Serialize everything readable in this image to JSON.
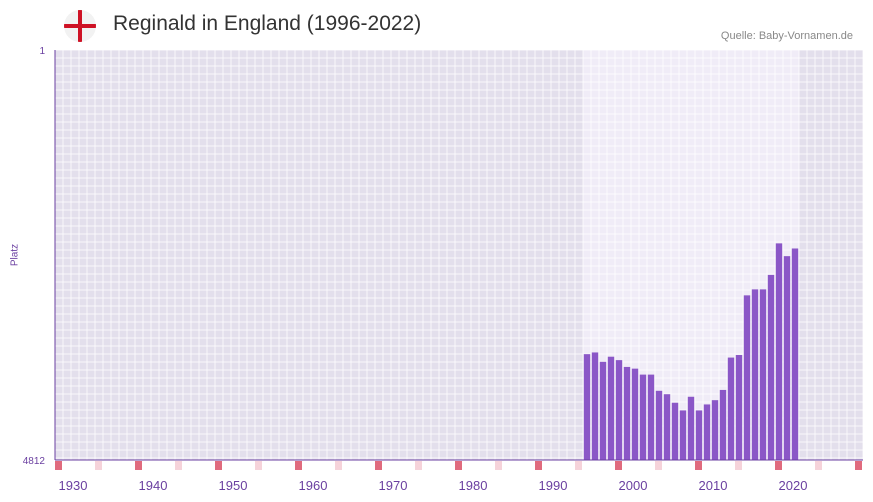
{
  "header": {
    "title": "Reginald in England (1996-2022)",
    "source": "Quelle: Baby-Vornamen.de",
    "flag_icon": "england-flag-icon"
  },
  "colors": {
    "bar": "#8b57c7",
    "plot_bg": "#e3dfec",
    "highlight_bg": "#f0ecf7",
    "grid": "#ffffff",
    "axis": "#6a3fa0",
    "marker_strong": "#e06b7e",
    "marker_light": "#f6d3da"
  },
  "chart_data": {
    "type": "bar",
    "title": "Reginald in England (1996-2022)",
    "ylabel": "Platz",
    "xlabel": "",
    "y_axis_inverted": true,
    "ylim": [
      1,
      4812
    ],
    "ytick_labels": [
      "1",
      "4812"
    ],
    "xlim": [
      1928,
      2029
    ],
    "xtick_labels": [
      "1930",
      "1940",
      "1950",
      "1960",
      "1970",
      "1980",
      "1990",
      "2000",
      "2010",
      "2020"
    ],
    "highlight_range": [
      1996,
      2022
    ],
    "categories": [
      1994,
      1995,
      1996,
      1997,
      1998,
      1999,
      2000,
      2001,
      2002,
      2003,
      2004,
      2005,
      2006,
      2007,
      2008,
      2009,
      2010,
      2011,
      2012,
      2013,
      2014,
      2015,
      2016,
      2017,
      2018,
      2019,
      2020
    ],
    "values": [
      3570,
      3550,
      3660,
      3600,
      3640,
      3720,
      3740,
      3810,
      3810,
      4000,
      4040,
      4140,
      4230,
      4070,
      4230,
      4160,
      4110,
      3990,
      3610,
      3580,
      2880,
      2810,
      2810,
      2640,
      2270,
      2420,
      2330
    ]
  }
}
